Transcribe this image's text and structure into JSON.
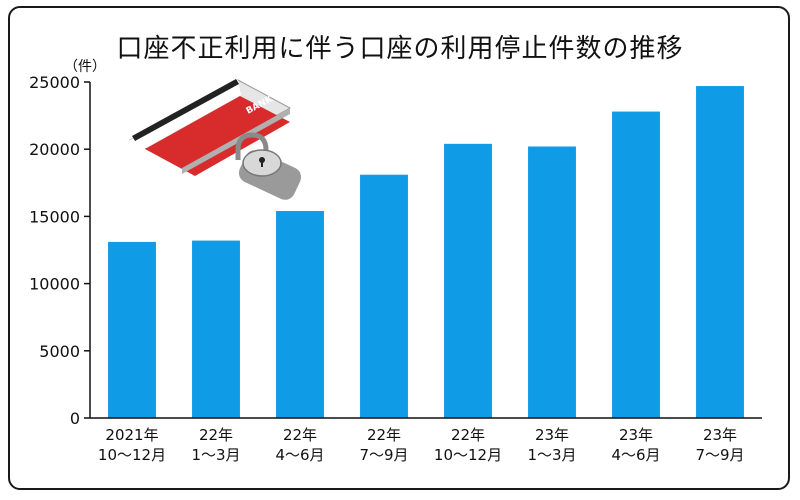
{
  "chart_data": {
    "type": "bar",
    "title": "口座不正利用に伴う口座の利用停止件数の推移",
    "unit_label": "（件）",
    "categories": [
      [
        "2021年",
        "10～12月"
      ],
      [
        "22年",
        "1～3月"
      ],
      [
        "22年",
        "4～6月"
      ],
      [
        "22年",
        "7～9月"
      ],
      [
        "22年",
        "10～12月"
      ],
      [
        "23年",
        "1～3月"
      ],
      [
        "23年",
        "4～6月"
      ],
      [
        "23年",
        "7～9月"
      ]
    ],
    "values": [
      13100,
      13200,
      15400,
      18100,
      20400,
      20200,
      22800,
      24700
    ],
    "ylim": [
      0,
      25000
    ],
    "yticks": [
      0,
      5000,
      10000,
      15000,
      20000,
      25000
    ],
    "bar_color": "#0f9be6",
    "grid": false,
    "illustration": "bank-card-with-padlock"
  }
}
